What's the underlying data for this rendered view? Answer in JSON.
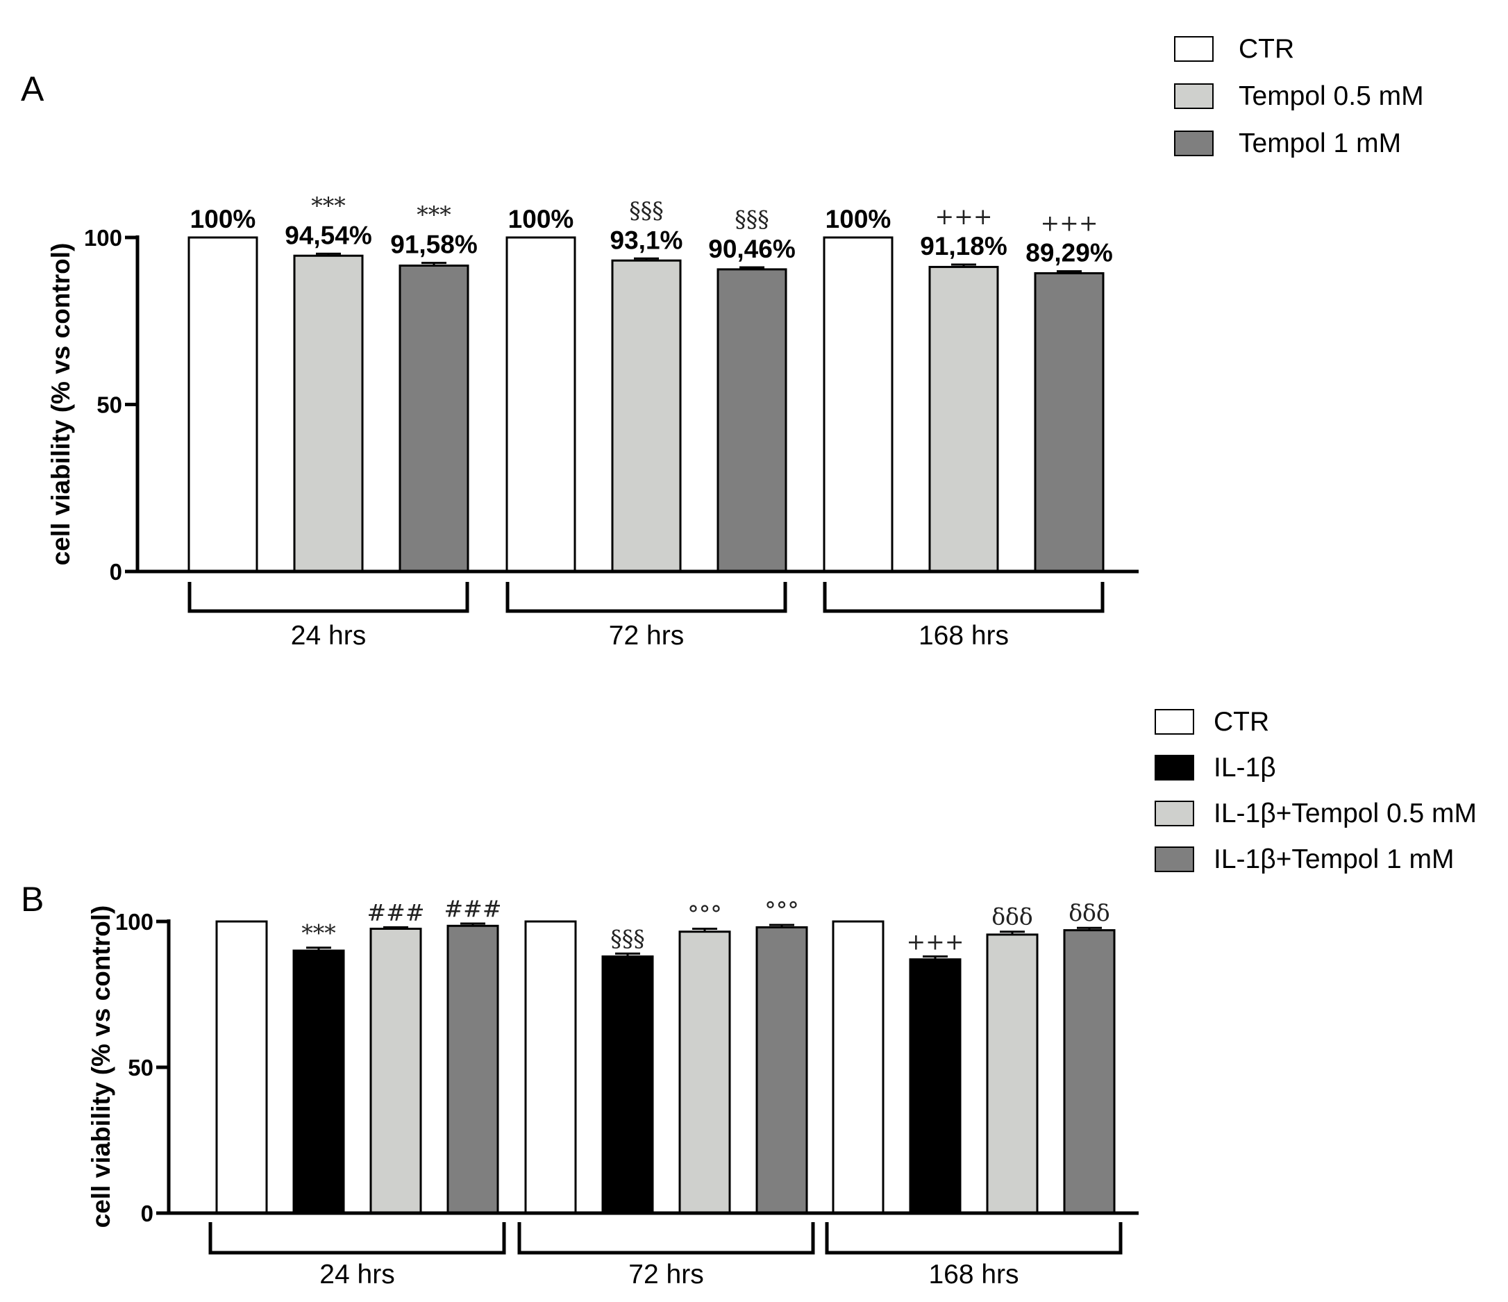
{
  "chart_data": [
    {
      "panel": "A",
      "type": "bar",
      "ylabel": "cell viability (% vs control)",
      "ylim": [
        0,
        100
      ],
      "yticks": [
        0,
        50,
        100
      ],
      "groups": [
        "24 hrs",
        "72 hrs",
        "168 hrs"
      ],
      "series": [
        {
          "name": "CTR",
          "color": "#ffffff"
        },
        {
          "name": "Tempol 0.5 mM",
          "color": "#cfd0cd"
        },
        {
          "name": "Tempol 1 mM",
          "color": "#7f7f7f"
        }
      ],
      "bars": [
        {
          "group": 0,
          "series": 0,
          "value": 100,
          "err": 0,
          "label": "100%",
          "sig": ""
        },
        {
          "group": 0,
          "series": 1,
          "value": 94.54,
          "err": 0.6,
          "label": "94,54%",
          "sig": "***"
        },
        {
          "group": 0,
          "series": 2,
          "value": 91.58,
          "err": 0.8,
          "label": "91,58%",
          "sig": "***"
        },
        {
          "group": 1,
          "series": 0,
          "value": 100,
          "err": 0,
          "label": "100%",
          "sig": ""
        },
        {
          "group": 1,
          "series": 1,
          "value": 93.1,
          "err": 0.6,
          "label": "93,1%",
          "sig": "§§§"
        },
        {
          "group": 1,
          "series": 2,
          "value": 90.46,
          "err": 0.6,
          "label": "90,46%",
          "sig": "§§§"
        },
        {
          "group": 2,
          "series": 0,
          "value": 100,
          "err": 0,
          "label": "100%",
          "sig": ""
        },
        {
          "group": 2,
          "series": 1,
          "value": 91.18,
          "err": 0.7,
          "label": "91,18%",
          "sig": "+++"
        },
        {
          "group": 2,
          "series": 2,
          "value": 89.29,
          "err": 0.6,
          "label": "89,29%",
          "sig": "+++"
        }
      ]
    },
    {
      "panel": "B",
      "type": "bar",
      "ylabel": "cell viability (% vs control)",
      "ylim": [
        0,
        100
      ],
      "yticks": [
        0,
        50,
        100
      ],
      "groups": [
        "24 hrs",
        "72 hrs",
        "168 hrs"
      ],
      "series": [
        {
          "name": "CTR",
          "color": "#ffffff"
        },
        {
          "name": "IL-1β",
          "color": "#000000"
        },
        {
          "name": "IL-1β+Tempol 0.5 mM",
          "color": "#cfd0cd"
        },
        {
          "name": "IL-1β+Tempol 1 mM",
          "color": "#7f7f7f"
        }
      ],
      "bars": [
        {
          "group": 0,
          "series": 0,
          "value": 100,
          "err": 0,
          "label": "",
          "sig": ""
        },
        {
          "group": 0,
          "series": 1,
          "value": 90,
          "err": 1.0,
          "label": "",
          "sig": "***"
        },
        {
          "group": 0,
          "series": 2,
          "value": 97.5,
          "err": 0.5,
          "label": "",
          "sig": "###"
        },
        {
          "group": 0,
          "series": 3,
          "value": 98.5,
          "err": 0.8,
          "label": "",
          "sig": "###"
        },
        {
          "group": 1,
          "series": 0,
          "value": 100,
          "err": 0,
          "label": "",
          "sig": ""
        },
        {
          "group": 1,
          "series": 1,
          "value": 88,
          "err": 1.0,
          "label": "",
          "sig": "§§§"
        },
        {
          "group": 1,
          "series": 2,
          "value": 96.5,
          "err": 1.0,
          "label": "",
          "sig": "°°°"
        },
        {
          "group": 1,
          "series": 3,
          "value": 98,
          "err": 0.8,
          "label": "",
          "sig": "°°°"
        },
        {
          "group": 2,
          "series": 0,
          "value": 100,
          "err": 0,
          "label": "",
          "sig": ""
        },
        {
          "group": 2,
          "series": 1,
          "value": 87,
          "err": 1.0,
          "label": "",
          "sig": "+++"
        },
        {
          "group": 2,
          "series": 2,
          "value": 95.5,
          "err": 1.0,
          "label": "",
          "sig": "δδδ"
        },
        {
          "group": 2,
          "series": 3,
          "value": 97,
          "err": 0.8,
          "label": "",
          "sig": "δδδ"
        }
      ]
    }
  ]
}
